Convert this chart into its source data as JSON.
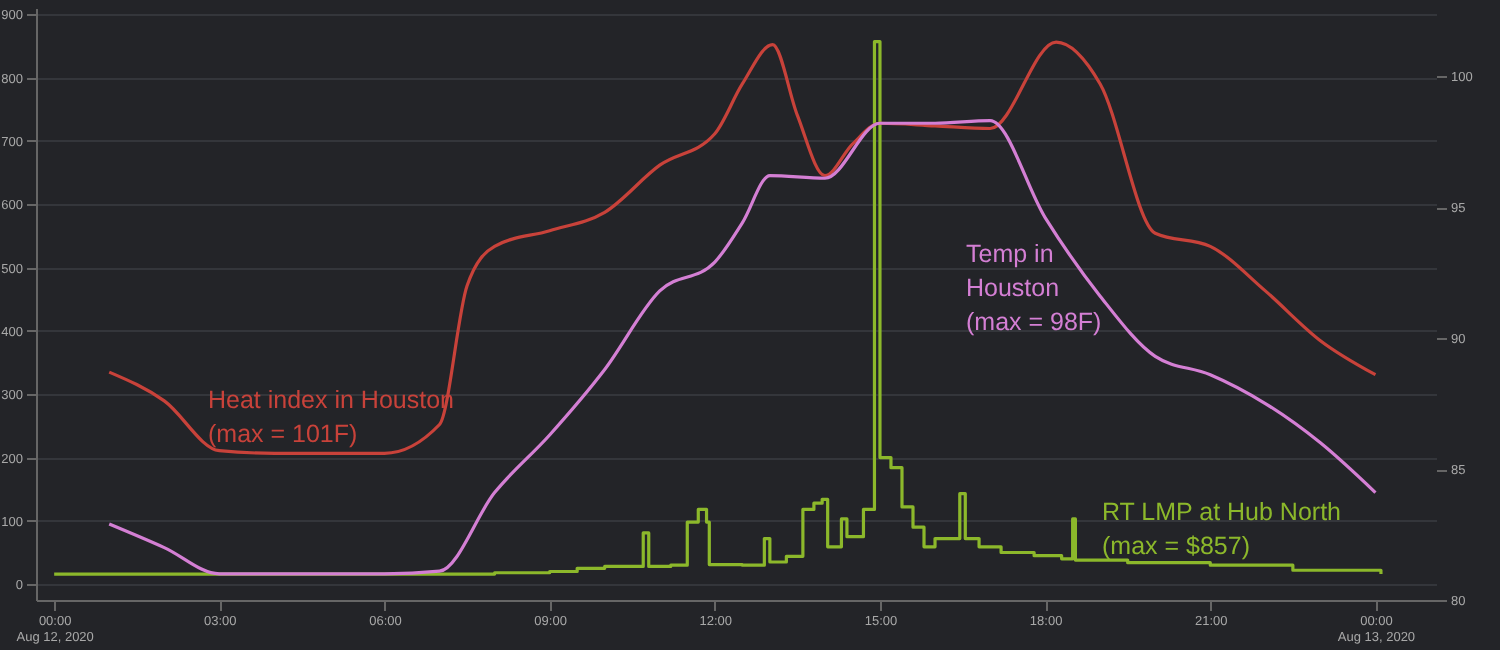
{
  "chart_data": {
    "type": "line",
    "xlim": [
      -0.33,
      25.1
    ],
    "xticks": [
      {
        "value": 0,
        "label": "00:00\nAug 12, 2020"
      },
      {
        "value": 3,
        "label": "03:00"
      },
      {
        "value": 6,
        "label": "06:00"
      },
      {
        "value": 9,
        "label": "09:00"
      },
      {
        "value": 12,
        "label": "12:00"
      },
      {
        "value": 15,
        "label": "15:00"
      },
      {
        "value": 18,
        "label": "18:00"
      },
      {
        "value": 21,
        "label": "21:00"
      },
      {
        "value": 24,
        "label": "00:00\nAug 13, 2020"
      }
    ],
    "ylim": [
      -25,
      910
    ],
    "yticks": [
      0,
      100,
      200,
      300,
      400,
      500,
      600,
      700,
      800,
      900
    ],
    "y2lim": [
      80,
      102.6
    ],
    "y2ticks": [
      80,
      85,
      90,
      95,
      100
    ],
    "grid": "y",
    "series": [
      {
        "name": "RT LMP at Hub North (max = $857)",
        "type": "step",
        "color": "#8cb82b",
        "x": [
          0,
          3,
          6,
          8,
          9,
          9.5,
          10,
          10.6,
          10.7,
          10.8,
          11.2,
          11.5,
          11.7,
          11.85,
          11.9,
          12.5,
          12.9,
          13.0,
          13.3,
          13.6,
          13.8,
          13.95,
          14.05,
          14.3,
          14.4,
          14.7,
          14.9,
          15.0,
          15.2,
          15.4,
          15.6,
          15.8,
          16.0,
          16.3,
          16.45,
          16.55,
          16.8,
          17.2,
          17.8,
          18.3,
          18.5,
          18.55,
          19.5,
          21,
          22.5,
          24.1
        ],
        "values": [
          16,
          16,
          16,
          18,
          20,
          25,
          28,
          28,
          81,
          28,
          30,
          98,
          118,
          98,
          31,
          30,
          72,
          35,
          44,
          118,
          128,
          134,
          59,
          103,
          75,
          118,
          857,
          200,
          184,
          122,
          90,
          59,
          72,
          72,
          143,
          72,
          59,
          50,
          45,
          40,
          103,
          38,
          34,
          30,
          22,
          16
        ]
      },
      {
        "name": "Heat index in Houston (max = 101F)",
        "type": "line",
        "axis": "y2",
        "color": "#c8423a",
        "x": [
          1,
          2,
          3,
          4,
          5,
          6,
          7,
          7.5,
          8,
          9,
          10,
          11,
          12,
          12.5,
          13.05,
          13.5,
          14,
          14.5,
          15,
          16,
          17,
          18.2,
          19,
          20,
          21,
          22,
          23,
          24
        ],
        "values": [
          88.7,
          87.6,
          85.7,
          85.6,
          85.6,
          85.6,
          86.7,
          92.0,
          93.5,
          94.1,
          94.8,
          96.6,
          97.8,
          99.7,
          101.2,
          98.5,
          96.2,
          97.4,
          98.2,
          98.1,
          98.0,
          101.3,
          99.7,
          94.0,
          93.5,
          91.8,
          89.9,
          88.6
        ]
      },
      {
        "name": "Temp in Houston (max = 98F)",
        "type": "line",
        "axis": "y2",
        "color": "#d47fd4",
        "x": [
          1,
          2,
          3,
          4,
          5,
          6,
          7,
          8,
          9,
          10,
          11,
          12,
          12.5,
          13,
          14,
          15,
          16,
          17,
          18,
          19,
          20,
          21,
          22,
          23,
          24
        ],
        "values": [
          82.9,
          82.0,
          81.0,
          81.0,
          81.0,
          81.0,
          81.1,
          84.1,
          86.3,
          88.8,
          91.8,
          92.9,
          94.4,
          96.2,
          96.1,
          98.2,
          98.2,
          98.3,
          94.6,
          91.6,
          89.3,
          88.6,
          87.5,
          86.0,
          84.1
        ]
      }
    ]
  }
}
